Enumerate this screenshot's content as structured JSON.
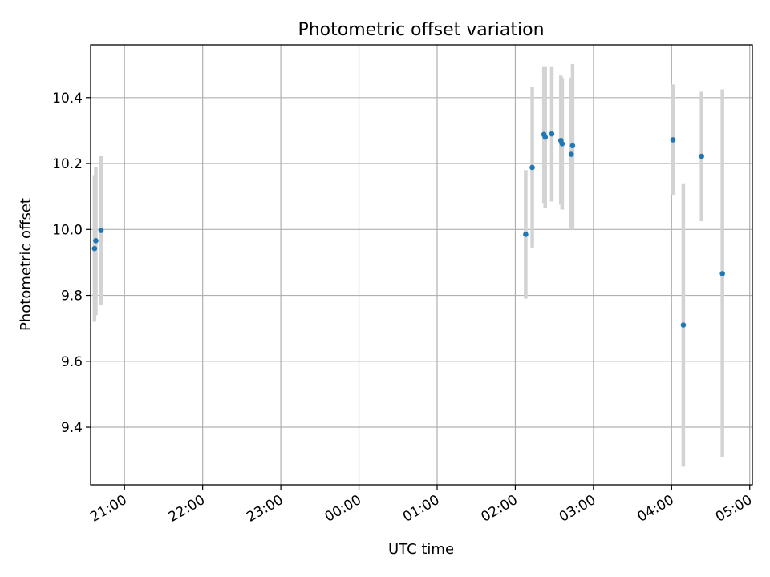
{
  "chart_data": {
    "type": "scatter",
    "title": "Photometric offset variation",
    "xlabel": "UTC time",
    "ylabel": "Photometric offset",
    "x_unit": "UTC time (HH:MM)",
    "x_tick_labels": [
      "21:00",
      "22:00",
      "23:00",
      "00:00",
      "01:00",
      "02:00",
      "03:00",
      "04:00",
      "05:00"
    ],
    "y_ticks": [
      9.4,
      9.6,
      9.8,
      10.0,
      10.2,
      10.4
    ],
    "y_tick_labels": [
      "9.4",
      "9.6",
      "9.8",
      "10.0",
      "10.2",
      "10.4"
    ],
    "xlim": [
      "20:34",
      "05:02"
    ],
    "ylim": [
      9.225,
      10.56
    ],
    "grid": true,
    "marker_color": "#1f77b4",
    "errorbar_color": "#d3d3d3",
    "points": [
      {
        "x": "20:37",
        "y": 9.942,
        "err_low": 9.72,
        "err_high": 10.165
      },
      {
        "x": "20:38",
        "y": 9.966,
        "err_low": 9.74,
        "err_high": 10.19
      },
      {
        "x": "20:42",
        "y": 9.997,
        "err_low": 9.77,
        "err_high": 10.222
      },
      {
        "x": "02:08",
        "y": 9.985,
        "err_low": 9.79,
        "err_high": 10.18
      },
      {
        "x": "02:13",
        "y": 10.188,
        "err_low": 9.945,
        "err_high": 10.433
      },
      {
        "x": "02:22",
        "y": 10.288,
        "err_low": 10.08,
        "err_high": 10.495
      },
      {
        "x": "02:23",
        "y": 10.28,
        "err_low": 10.065,
        "err_high": 10.495
      },
      {
        "x": "02:28",
        "y": 10.29,
        "err_low": 10.085,
        "err_high": 10.495
      },
      {
        "x": "02:35",
        "y": 10.27,
        "err_low": 10.075,
        "err_high": 10.467
      },
      {
        "x": "02:36",
        "y": 10.26,
        "err_low": 10.06,
        "err_high": 10.46
      },
      {
        "x": "02:43",
        "y": 10.228,
        "err_low": 10.0,
        "err_high": 10.46
      },
      {
        "x": "02:44",
        "y": 10.254,
        "err_low": 10.0,
        "err_high": 10.502
      },
      {
        "x": "04:01",
        "y": 10.272,
        "err_low": 10.105,
        "err_high": 10.44
      },
      {
        "x": "04:09",
        "y": 9.71,
        "err_low": 9.28,
        "err_high": 10.14
      },
      {
        "x": "04:23",
        "y": 10.222,
        "err_low": 10.025,
        "err_high": 10.418
      },
      {
        "x": "04:39",
        "y": 9.866,
        "err_low": 9.31,
        "err_high": 10.425
      }
    ]
  }
}
